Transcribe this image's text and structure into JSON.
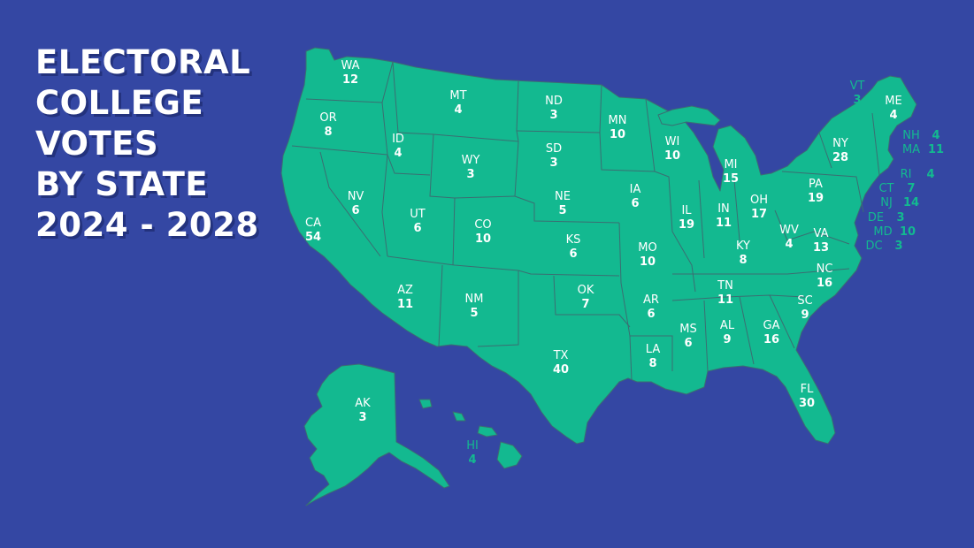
{
  "title_lines": [
    "ELECTORAL",
    "COLLEGE",
    "VOTES",
    "BY STATE",
    "2024 - 2028"
  ],
  "colors": {
    "background": "#3447a3",
    "land": "#13b990",
    "label": "#ffffff"
  },
  "states": [
    {
      "code": "WA",
      "votes": "12"
    },
    {
      "code": "OR",
      "votes": "8"
    },
    {
      "code": "CA",
      "votes": "54"
    },
    {
      "code": "NV",
      "votes": "6"
    },
    {
      "code": "ID",
      "votes": "4"
    },
    {
      "code": "MT",
      "votes": "4"
    },
    {
      "code": "WY",
      "votes": "3"
    },
    {
      "code": "UT",
      "votes": "6"
    },
    {
      "code": "AZ",
      "votes": "11"
    },
    {
      "code": "CO",
      "votes": "10"
    },
    {
      "code": "NM",
      "votes": "5"
    },
    {
      "code": "ND",
      "votes": "3"
    },
    {
      "code": "SD",
      "votes": "3"
    },
    {
      "code": "NE",
      "votes": "5"
    },
    {
      "code": "KS",
      "votes": "6"
    },
    {
      "code": "OK",
      "votes": "7"
    },
    {
      "code": "TX",
      "votes": "40"
    },
    {
      "code": "MN",
      "votes": "10"
    },
    {
      "code": "IA",
      "votes": "6"
    },
    {
      "code": "MO",
      "votes": "10"
    },
    {
      "code": "AR",
      "votes": "6"
    },
    {
      "code": "LA",
      "votes": "8"
    },
    {
      "code": "WI",
      "votes": "10"
    },
    {
      "code": "IL",
      "votes": "19"
    },
    {
      "code": "MI",
      "votes": "15"
    },
    {
      "code": "IN",
      "votes": "11"
    },
    {
      "code": "OH",
      "votes": "17"
    },
    {
      "code": "KY",
      "votes": "8"
    },
    {
      "code": "TN",
      "votes": "11"
    },
    {
      "code": "MS",
      "votes": "6"
    },
    {
      "code": "AL",
      "votes": "9"
    },
    {
      "code": "GA",
      "votes": "16"
    },
    {
      "code": "FL",
      "votes": "30"
    },
    {
      "code": "SC",
      "votes": "9"
    },
    {
      "code": "NC",
      "votes": "16"
    },
    {
      "code": "VA",
      "votes": "13"
    },
    {
      "code": "WV",
      "votes": "4"
    },
    {
      "code": "PA",
      "votes": "19"
    },
    {
      "code": "NY",
      "votes": "28"
    },
    {
      "code": "ME",
      "votes": "4"
    },
    {
      "code": "AK",
      "votes": "3"
    }
  ],
  "callouts": [
    {
      "code": "VT",
      "votes": "3"
    },
    {
      "code": "NH",
      "votes": "4"
    },
    {
      "code": "MA",
      "votes": "11"
    },
    {
      "code": "RI",
      "votes": "4"
    },
    {
      "code": "CT",
      "votes": "7"
    },
    {
      "code": "NJ",
      "votes": "14"
    },
    {
      "code": "DE",
      "votes": "3"
    },
    {
      "code": "MD",
      "votes": "10"
    },
    {
      "code": "DC",
      "votes": "3"
    },
    {
      "code": "HI",
      "votes": "4"
    }
  ]
}
